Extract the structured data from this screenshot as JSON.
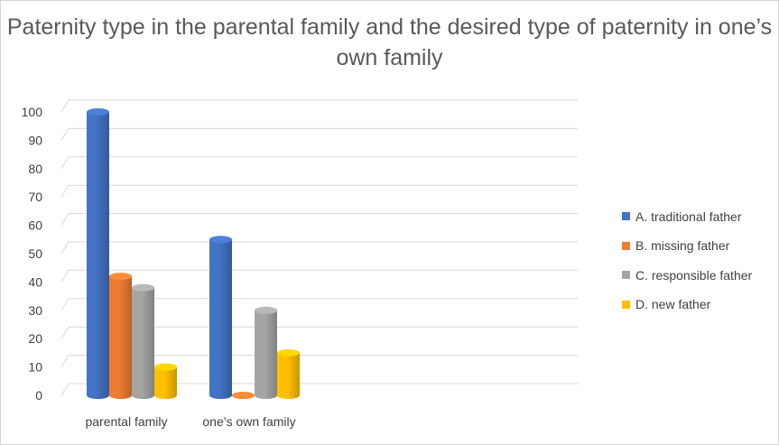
{
  "chart_data": {
    "type": "bar",
    "title": "Paternity type in the parental family and the desired type of paternity in one’s own family",
    "categories": [
      "parental family",
      "one’s own family"
    ],
    "series": [
      {
        "name": "A. traditional father",
        "color": "#4472C4",
        "values": [
          100,
          55
        ]
      },
      {
        "name": "B. missing father",
        "color": "#ED7D31",
        "values": [
          42,
          0
        ]
      },
      {
        "name": "C. responsible father",
        "color": "#A5A5A5",
        "values": [
          38,
          30
        ]
      },
      {
        "name": "D. new father",
        "color": "#FFC000",
        "values": [
          10,
          15
        ]
      }
    ],
    "yticks": [
      "0",
      "10",
      "20",
      "30",
      "40",
      "50",
      "60",
      "70",
      "80",
      "90",
      "100"
    ],
    "ylim": [
      0,
      100
    ],
    "grid": true,
    "legend": "right",
    "style": "3d-cylinder"
  }
}
